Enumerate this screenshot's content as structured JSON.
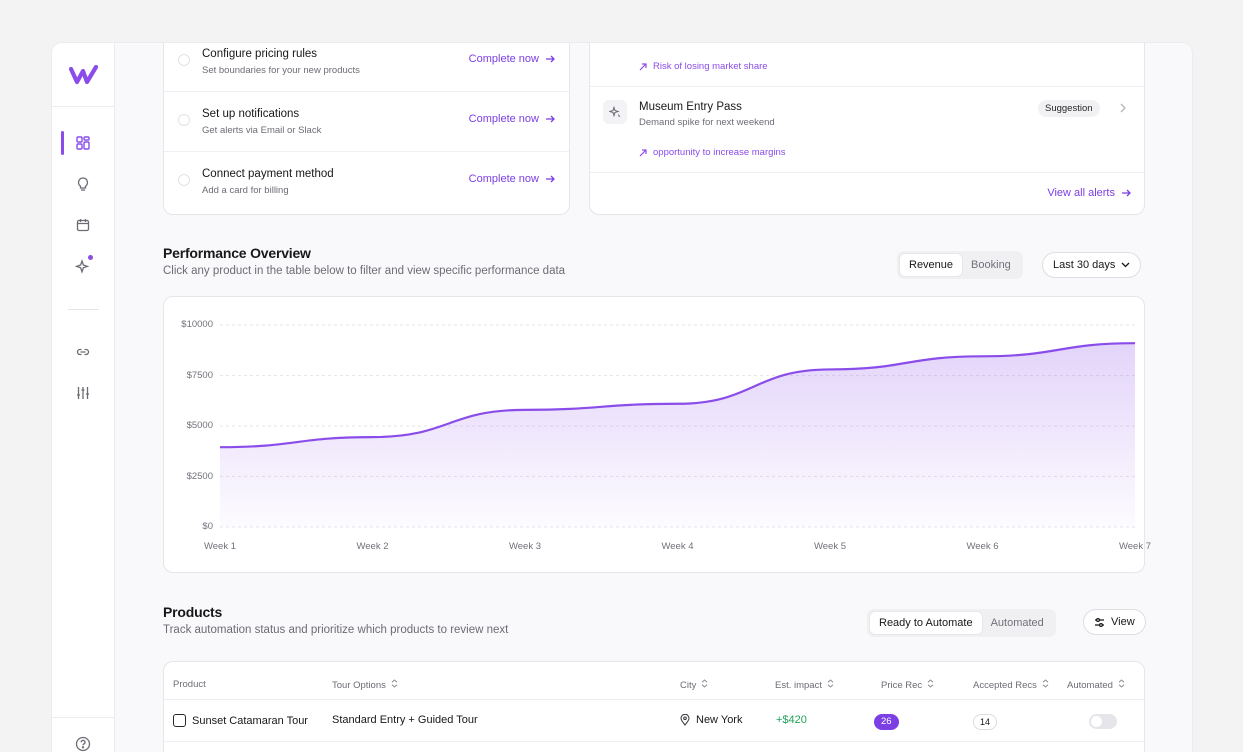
{
  "setup": {
    "items": [
      {
        "title": "Configure pricing rules",
        "subtitle": "Set boundaries for your new products",
        "action": "Complete now"
      },
      {
        "title": "Set up notifications",
        "subtitle": "Get alerts via Email or Slack",
        "action": "Complete now"
      },
      {
        "title": "Connect payment method",
        "subtitle": "Add a card for billing",
        "action": "Complete now"
      }
    ]
  },
  "alerts": {
    "risk_text": "Risk of losing market share",
    "item": {
      "title": "Museum Entry Pass",
      "subtitle": "Demand spike for next weekend",
      "badge": "Suggestion",
      "note": "opportunity to increase margins"
    },
    "view_all": "View all alerts"
  },
  "performance": {
    "title": "Performance Overview",
    "subtitle": "Click any product in the table below to filter and view specific performance data",
    "tabs": [
      "Revenue",
      "Booking"
    ],
    "active_tab": "Revenue",
    "range": "Last 30 days"
  },
  "chart_data": {
    "type": "area",
    "categories": [
      "Week 1",
      "Week 2",
      "Week 3",
      "Week 4",
      "Week 5",
      "Week 6",
      "Week 7"
    ],
    "values": [
      3950,
      4450,
      5800,
      6100,
      7800,
      8450,
      9100
    ],
    "y_ticks": [
      "$10000",
      "$7500",
      "$5000",
      "$2500",
      "$0"
    ],
    "ylim": [
      0,
      10000
    ],
    "grid": true,
    "color": "#8a4dea"
  },
  "products": {
    "title": "Products",
    "subtitle": "Track automation status and prioritize which products to review next",
    "tabs": [
      "Ready to Automate",
      "Automated"
    ],
    "active_tab": "Ready to Automate",
    "view_label": "View",
    "columns": [
      "Product",
      "Tour Options",
      "City",
      "Est. impact",
      "Price Rec",
      "Accepted Recs",
      "Automated"
    ],
    "rows": [
      {
        "product": "Sunset Catamaran Tour",
        "tour_option": "Standard Entry + Guided Tour",
        "city": "New York",
        "impact": "+$420",
        "price_rec": "26",
        "accepted": "14",
        "automated": false
      }
    ]
  },
  "colors": {
    "accent": "#8a4dea",
    "positive": "#22a35a"
  }
}
